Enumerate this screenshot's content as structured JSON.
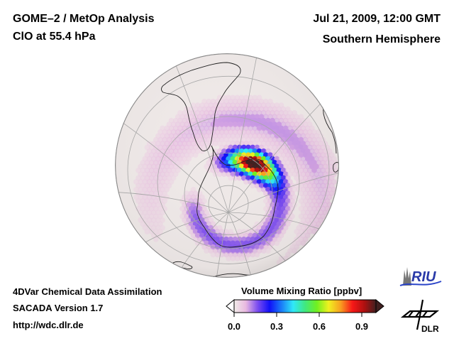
{
  "header": {
    "title": "GOME–2 / MetOp Analysis",
    "species_level": "ClO at 55.4 hPa",
    "datetime": "Jul 21, 2009, 12:00 GMT",
    "region": "Southern Hemisphere"
  },
  "footer": {
    "line1": "4DVar Chemical Data Assimilation",
    "line2": "SACADA Version 1.7",
    "line3": "http://wdc.dlr.de"
  },
  "colorbar": {
    "title": "Volume Mixing Ratio [ppbv]",
    "ticks": [
      "0.0",
      "0.3",
      "0.6",
      "0.9"
    ],
    "range": [
      0.0,
      1.0
    ],
    "colors": [
      "#f2ece8",
      "#e8b8e0",
      "#7a4cf0",
      "#1010f8",
      "#1a7cf8",
      "#30e8f8",
      "#40e880",
      "#70f020",
      "#f0f020",
      "#f8a020",
      "#f81818",
      "#b01010",
      "#402020"
    ]
  },
  "logos": {
    "riu": "RIU",
    "dlr": "DLR"
  },
  "map": {
    "projection": "orthographic, south polar view",
    "background_color": "#efe9e8",
    "coast_color": "#202020",
    "grid_color": "#a8a8a8"
  }
}
